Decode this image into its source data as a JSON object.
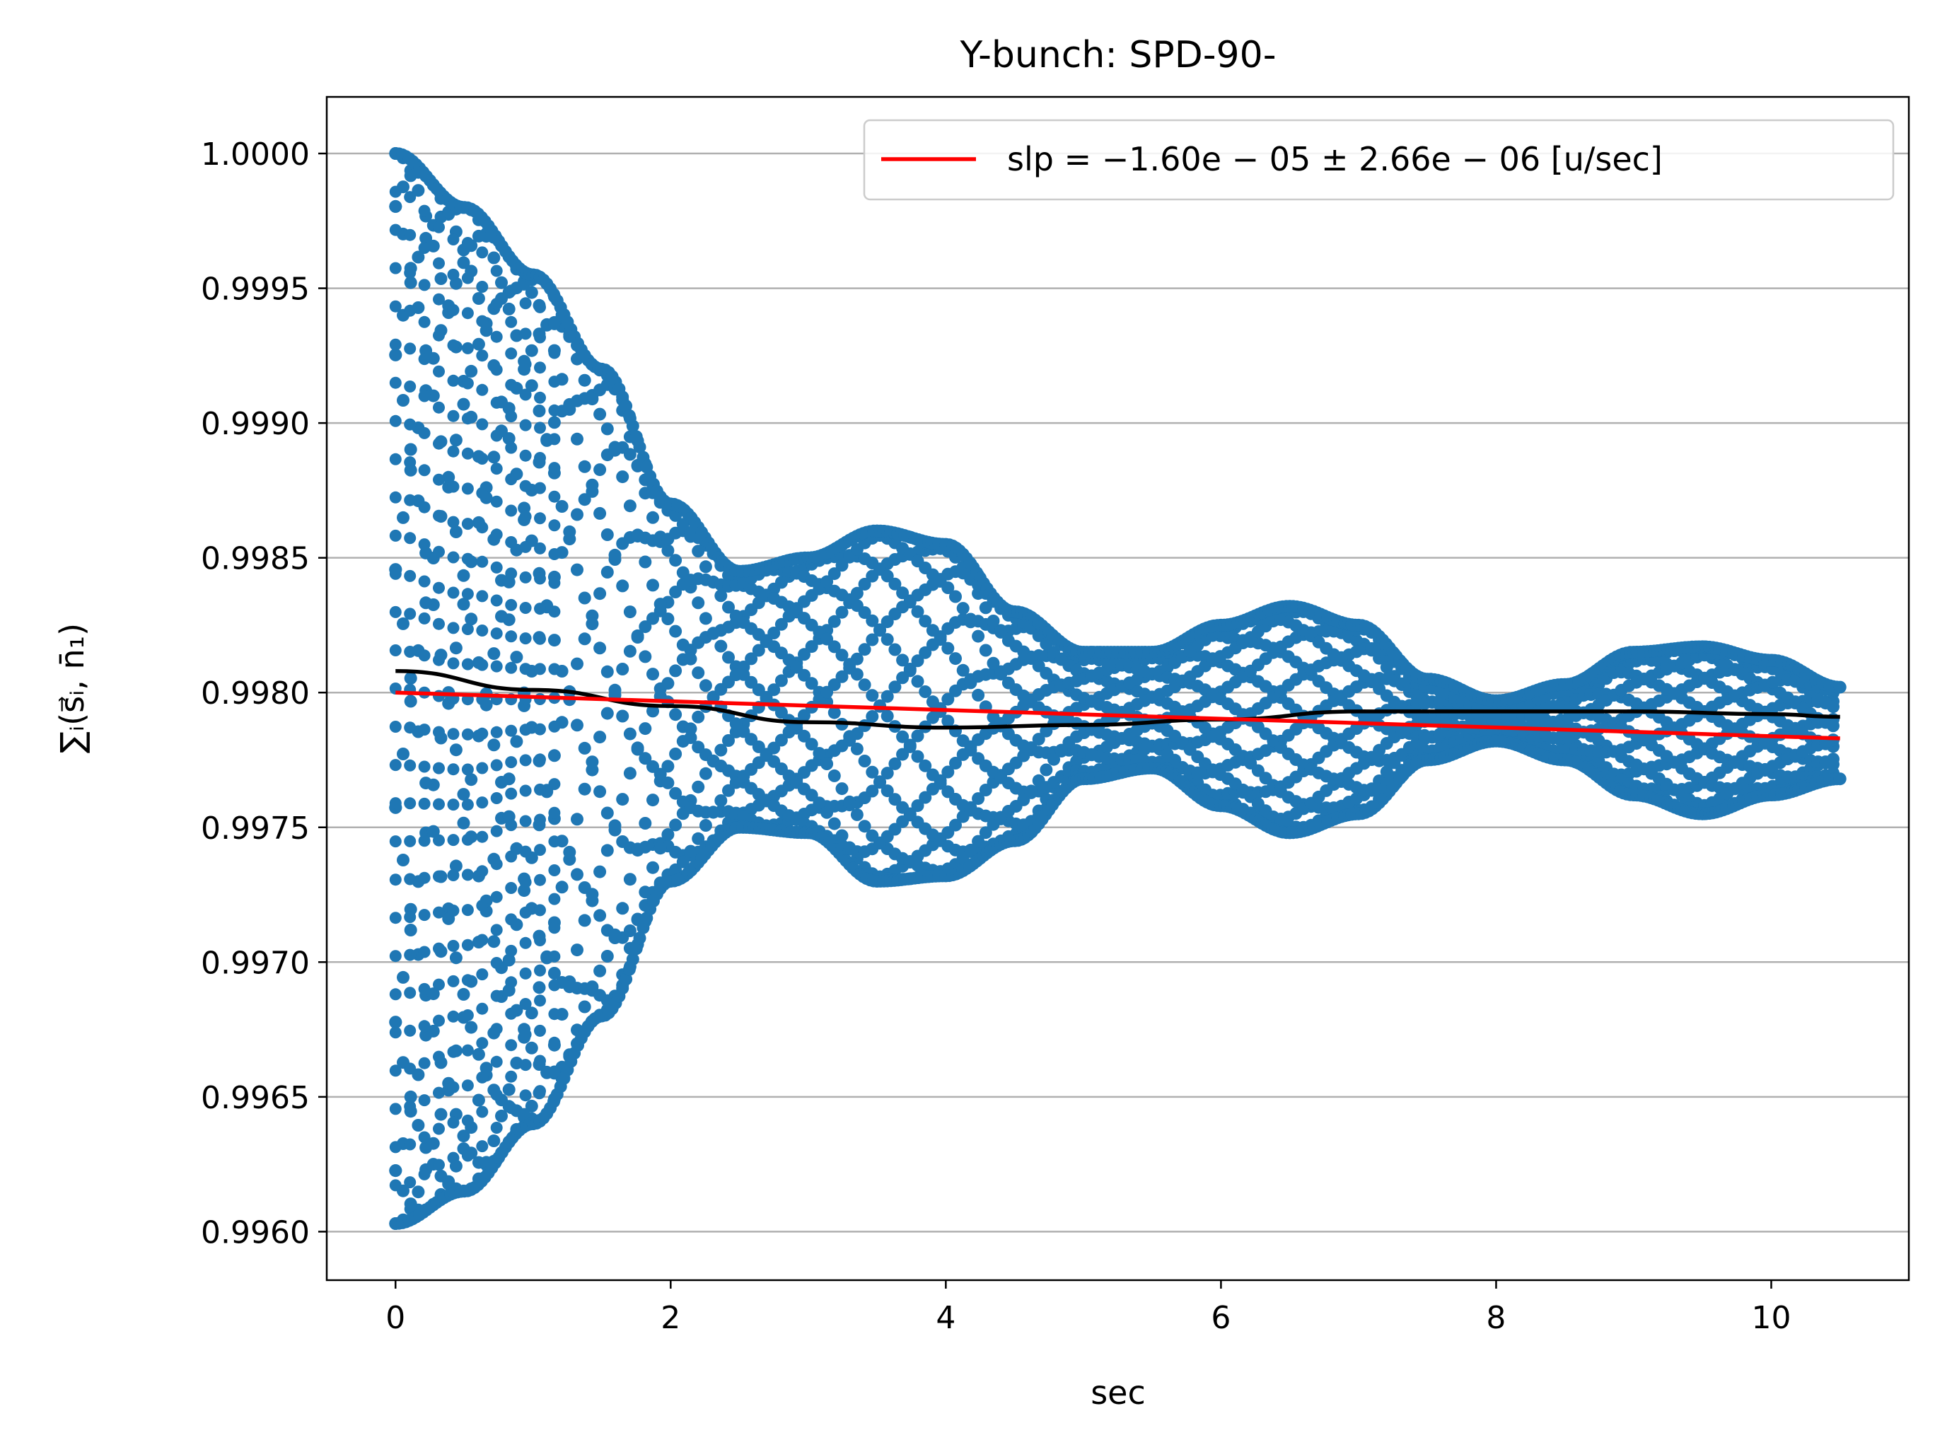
{
  "chart_data": {
    "type": "scatter",
    "title": "Y-bunch: SPD-90-",
    "xlabel": "sec",
    "ylabel": "∑ᵢ(s⃗ᵢ, n̄₁)",
    "xlim": [
      -0.5,
      11.0
    ],
    "ylim": [
      0.99582,
      1.00021
    ],
    "xticks": [
      "0",
      "2",
      "4",
      "6",
      "8",
      "10"
    ],
    "xtick_values": [
      0,
      2,
      4,
      6,
      8,
      10
    ],
    "yticks": [
      "0.9960",
      "0.9965",
      "0.9970",
      "0.9975",
      "0.9980",
      "0.9985",
      "0.9990",
      "0.9995",
      "1.0000"
    ],
    "ytick_values": [
      0.996,
      0.9965,
      0.997,
      0.9975,
      0.998,
      0.9985,
      0.999,
      0.9995,
      1.0
    ],
    "grid": "horizontal",
    "legend_placement": "top-right",
    "legend": [
      {
        "label": "slp = −1.60e − 05 ± 2.66e − 06 [u/sec]",
        "color": "#ff0000"
      }
    ],
    "scatter_color": "#1f77b4",
    "x_range": [
      0.0,
      10.5
    ],
    "envelope": {
      "x": [
        0.0,
        0.5,
        1.0,
        1.5,
        2.0,
        2.5,
        3.0,
        3.5,
        4.0,
        4.5,
        5.0,
        5.5,
        6.0,
        6.5,
        7.0,
        7.5,
        8.0,
        8.5,
        9.0,
        9.5,
        10.0,
        10.5
      ],
      "upper": [
        1.0,
        0.9998,
        0.99955,
        0.9992,
        0.9987,
        0.99845,
        0.9985,
        0.9986,
        0.99855,
        0.9983,
        0.99815,
        0.99815,
        0.99825,
        0.99832,
        0.99825,
        0.99805,
        0.99797,
        0.99803,
        0.99815,
        0.99817,
        0.99812,
        0.99802
      ],
      "lower": [
        0.99603,
        0.99615,
        0.9964,
        0.9968,
        0.9973,
        0.9975,
        0.99748,
        0.9973,
        0.99732,
        0.99745,
        0.99768,
        0.99772,
        0.99758,
        0.99748,
        0.99755,
        0.99775,
        0.99782,
        0.99775,
        0.99762,
        0.99755,
        0.99762,
        0.99768
      ]
    },
    "series": [
      {
        "color": "#000000",
        "x": [
          0.0,
          1.0,
          2.0,
          3.0,
          4.0,
          5.0,
          6.0,
          7.0,
          8.0,
          9.0,
          10.0,
          10.5
        ],
        "y": [
          0.99808,
          0.99801,
          0.99795,
          0.99789,
          0.99787,
          0.99788,
          0.9979,
          0.99793,
          0.99793,
          0.99793,
          0.99792,
          0.99791
        ]
      },
      {
        "color": "#ff0000",
        "x": [
          0.0,
          10.5
        ],
        "y": [
          0.998,
          0.99783
        ]
      }
    ]
  }
}
